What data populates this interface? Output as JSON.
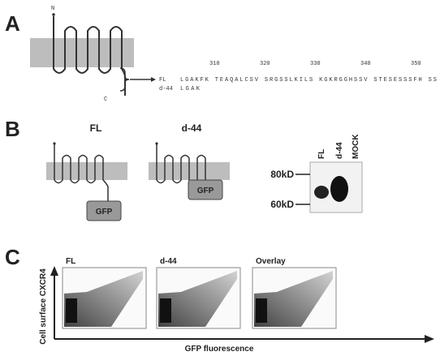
{
  "panel_a": {
    "label": "A",
    "n_terminus": "N",
    "c_terminus": "C",
    "positions": [
      "310",
      "320",
      "330",
      "340",
      "350"
    ],
    "rows": [
      {
        "name": "FL",
        "sequence": "LGAKFK TEAQALCSV SRGSSLKILS KGKRGGHSSV STESESSSFH SS"
      },
      {
        "name": "d-44",
        "sequence": "LGAK"
      }
    ]
  },
  "panel_b": {
    "label": "B",
    "constructs": [
      {
        "name": "FL",
        "tag": "GFP"
      },
      {
        "name": "d-44",
        "tag": "GFP"
      }
    ],
    "blot": {
      "lanes": [
        "FL",
        "d-44",
        "MOCK"
      ],
      "markers": [
        "80kD",
        "60kD"
      ]
    }
  },
  "panel_c": {
    "label": "C",
    "plots": [
      "FL",
      "d-44",
      "Overlay"
    ],
    "y_label": "Cell surface CXCR4",
    "x_label": "GFP fluorescence"
  }
}
